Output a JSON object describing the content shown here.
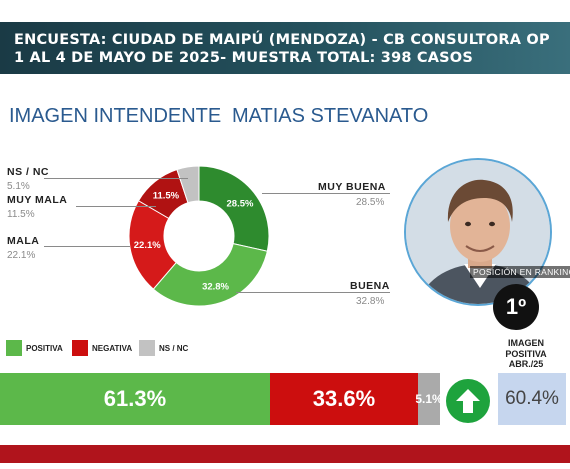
{
  "header": {
    "line1": "ENCUESTA: CIUDAD DE MAIPÚ (MENDOZA) - CB CONSULTORA OP",
    "line2": "1 AL 4 DE MAYO DE 2025- MUESTRA TOTAL: 398 CASOS"
  },
  "subtitle": {
    "left": "IMAGEN INTENDENTE",
    "right": "MATIAS STEVANATO"
  },
  "chart_data": [
    {
      "type": "pie",
      "categories": [
        "MUY BUENA",
        "BUENA",
        "MALA",
        "MUY MALA",
        "NS / NC"
      ],
      "values": [
        28.5,
        32.8,
        22.1,
        11.5,
        5.1
      ],
      "value_labels": [
        "28.5%",
        "32.8%",
        "22.1%",
        "11.5%",
        "5.1%"
      ],
      "colors": [
        "#2e8b2e",
        "#5cb84a",
        "#d51a1a",
        "#b01212",
        "#c2c2c2"
      ],
      "hole": "donut"
    },
    {
      "type": "bar",
      "orientation": "horizontal-stacked",
      "categories": [
        "POSITIVA",
        "NEGATIVA",
        "NS / NC"
      ],
      "values": [
        61.3,
        33.6,
        5.1
      ],
      "value_labels": [
        "61.3%",
        "33.6%",
        "5.1%"
      ],
      "colors": [
        "#5cb84a",
        "#cc0e0e",
        "#aaaaaa"
      ]
    }
  ],
  "ranking": {
    "label": "POSICIÓN EN RANKING",
    "value": "1º"
  },
  "previous": {
    "title": "IMAGEN POSITIVA ABR./25",
    "value": "60.4%"
  },
  "icons": {
    "trend": "up-arrow-icon",
    "photo": "person-photo"
  }
}
